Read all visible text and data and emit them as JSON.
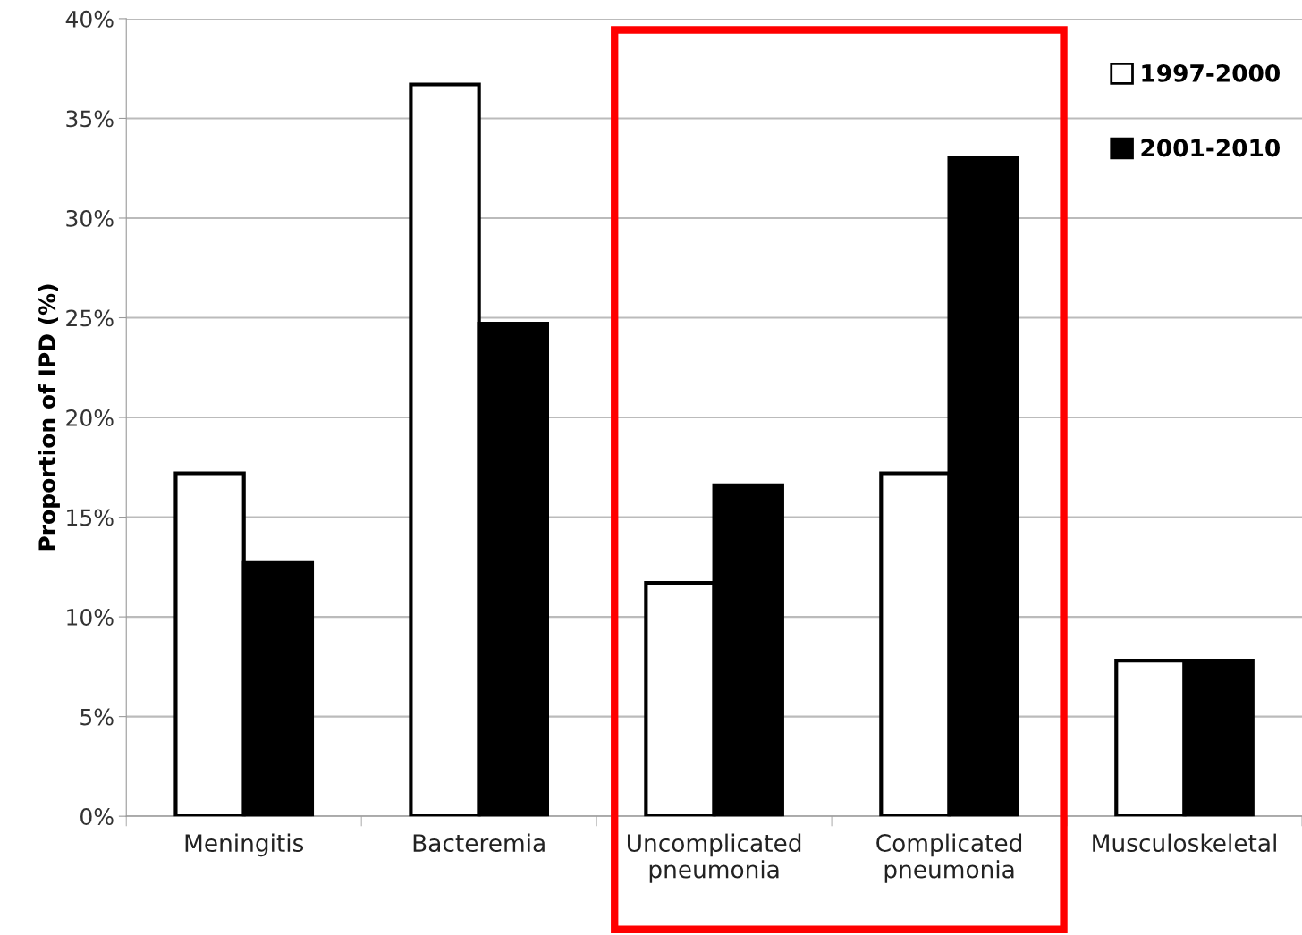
{
  "chart_data": {
    "type": "bar",
    "ylabel": "Proportion of IPD (%)",
    "categories": [
      "Meningitis",
      "Bacteremia",
      "Uncomplicated\npneumonia",
      "Complicated\npneumonia",
      "Musculoskeletal"
    ],
    "series": [
      {
        "name": "1997-2000",
        "color": "#ffffff",
        "values": [
          17.2,
          36.7,
          11.7,
          17.2,
          7.8
        ]
      },
      {
        "name": "2001-2010",
        "color": "#000000",
        "values": [
          12.7,
          24.7,
          16.6,
          33.0,
          7.8
        ]
      }
    ],
    "ylim": [
      0,
      40
    ],
    "yticks": [
      {
        "value": 0,
        "label": "0%"
      },
      {
        "value": 5,
        "label": "5%"
      },
      {
        "value": 10,
        "label": "10%"
      },
      {
        "value": 15,
        "label": "15%"
      },
      {
        "value": 20,
        "label": "20%"
      },
      {
        "value": 25,
        "label": "25%"
      },
      {
        "value": 30,
        "label": "30%"
      },
      {
        "value": 35,
        "label": "35%"
      },
      {
        "value": 40,
        "label": "40%"
      }
    ],
    "grid": "y",
    "legend": "top right"
  }
}
